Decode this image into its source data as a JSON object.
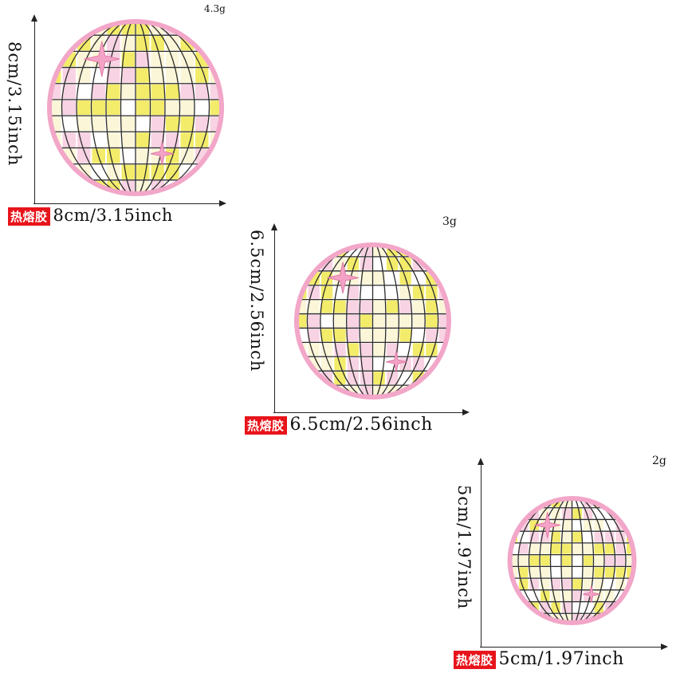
{
  "colors": {
    "pink": "#f2a6c8",
    "yellow": "#f3ec6a",
    "cream": "#fbf6d8",
    "light_pink": "#f8d3e3",
    "grid": "#2b2b2b",
    "badge_red": "#e8141b"
  },
  "products": [
    {
      "weight": "4.3g",
      "height_label": "8cm/3.15inch",
      "badge": "热熔胶",
      "width_label": "8cm/3.15inch"
    },
    {
      "weight": "3g",
      "height_label": "6.5cm/2.56inch",
      "badge": "热熔胶",
      "width_label": "6.5cm/2.56inch"
    },
    {
      "weight": "2g",
      "height_label": "5cm/1.97inch",
      "badge": "热熔胶",
      "width_label": "5cm/1.97inch"
    }
  ]
}
